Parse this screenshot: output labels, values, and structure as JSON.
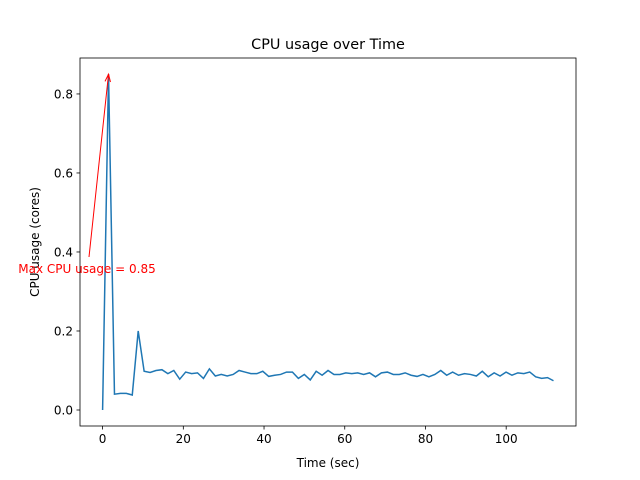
{
  "chart_data": {
    "type": "line",
    "title": "CPU usage over Time",
    "x_label": "Time (sec)",
    "y_label": "CPU usage (cores)",
    "annotation": "Max CPU usage = 0.85",
    "x": [
      0,
      1.47,
      2.94,
      4.41,
      5.88,
      7.35,
      8.82,
      10.29,
      11.76,
      13.23,
      14.7,
      16.17,
      17.64,
      19.11,
      20.58,
      22.05,
      23.52,
      24.99,
      26.46,
      27.93,
      29.4,
      30.87,
      32.34,
      33.81,
      35.28,
      36.75,
      38.22,
      39.69,
      41.16,
      42.63,
      44.1,
      45.57,
      47.04,
      48.51,
      49.98,
      51.45,
      52.92,
      54.39,
      55.86,
      57.33,
      58.8,
      60.27,
      61.74,
      63.21,
      64.68,
      66.15,
      67.62,
      69.09,
      70.56,
      72.03,
      73.5,
      74.97,
      76.44,
      77.91,
      79.38,
      80.85,
      82.32,
      83.79,
      85.26,
      86.73,
      88.2,
      89.67,
      91.14,
      92.61,
      94.08,
      95.55,
      97.02,
      98.49,
      99.96,
      101.43,
      102.9,
      104.37,
      105.84,
      107.31,
      108.78,
      110.25,
      111.72
    ],
    "series": [
      {
        "color": "#1f77b4",
        "values": [
          0,
          0.85,
          0.04,
          0.042,
          0.042,
          0.038,
          0.2,
          0.098,
          0.095,
          0.1,
          0.102,
          0.092,
          0.1,
          0.078,
          0.096,
          0.092,
          0.094,
          0.08,
          0.104,
          0.086,
          0.09,
          0.086,
          0.09,
          0.1,
          0.096,
          0.092,
          0.092,
          0.098,
          0.085,
          0.088,
          0.09,
          0.096,
          0.096,
          0.08,
          0.09,
          0.076,
          0.098,
          0.088,
          0.1,
          0.09,
          0.09,
          0.094,
          0.092,
          0.094,
          0.09,
          0.094,
          0.084,
          0.094,
          0.096,
          0.09,
          0.09,
          0.094,
          0.088,
          0.085,
          0.09,
          0.084,
          0.09,
          0.1,
          0.088,
          0.096,
          0.088,
          0.092,
          0.09,
          0.086,
          0.098,
          0.084,
          0.094,
          0.086,
          0.096,
          0.088,
          0.094,
          0.092,
          0.096,
          0.084,
          0.08,
          0.082,
          0.074
        ]
      }
    ],
    "annotation_color": "#ff0000",
    "xlim": [
      -5.6,
      117.3
    ],
    "ylim": [
      -0.0405,
      0.891
    ],
    "xticks": [
      0,
      20,
      40,
      60,
      80,
      100
    ],
    "yticks": [
      {
        "value": 0,
        "label": "0.0"
      },
      0.2,
      0.4,
      0.6,
      0.8
    ]
  }
}
